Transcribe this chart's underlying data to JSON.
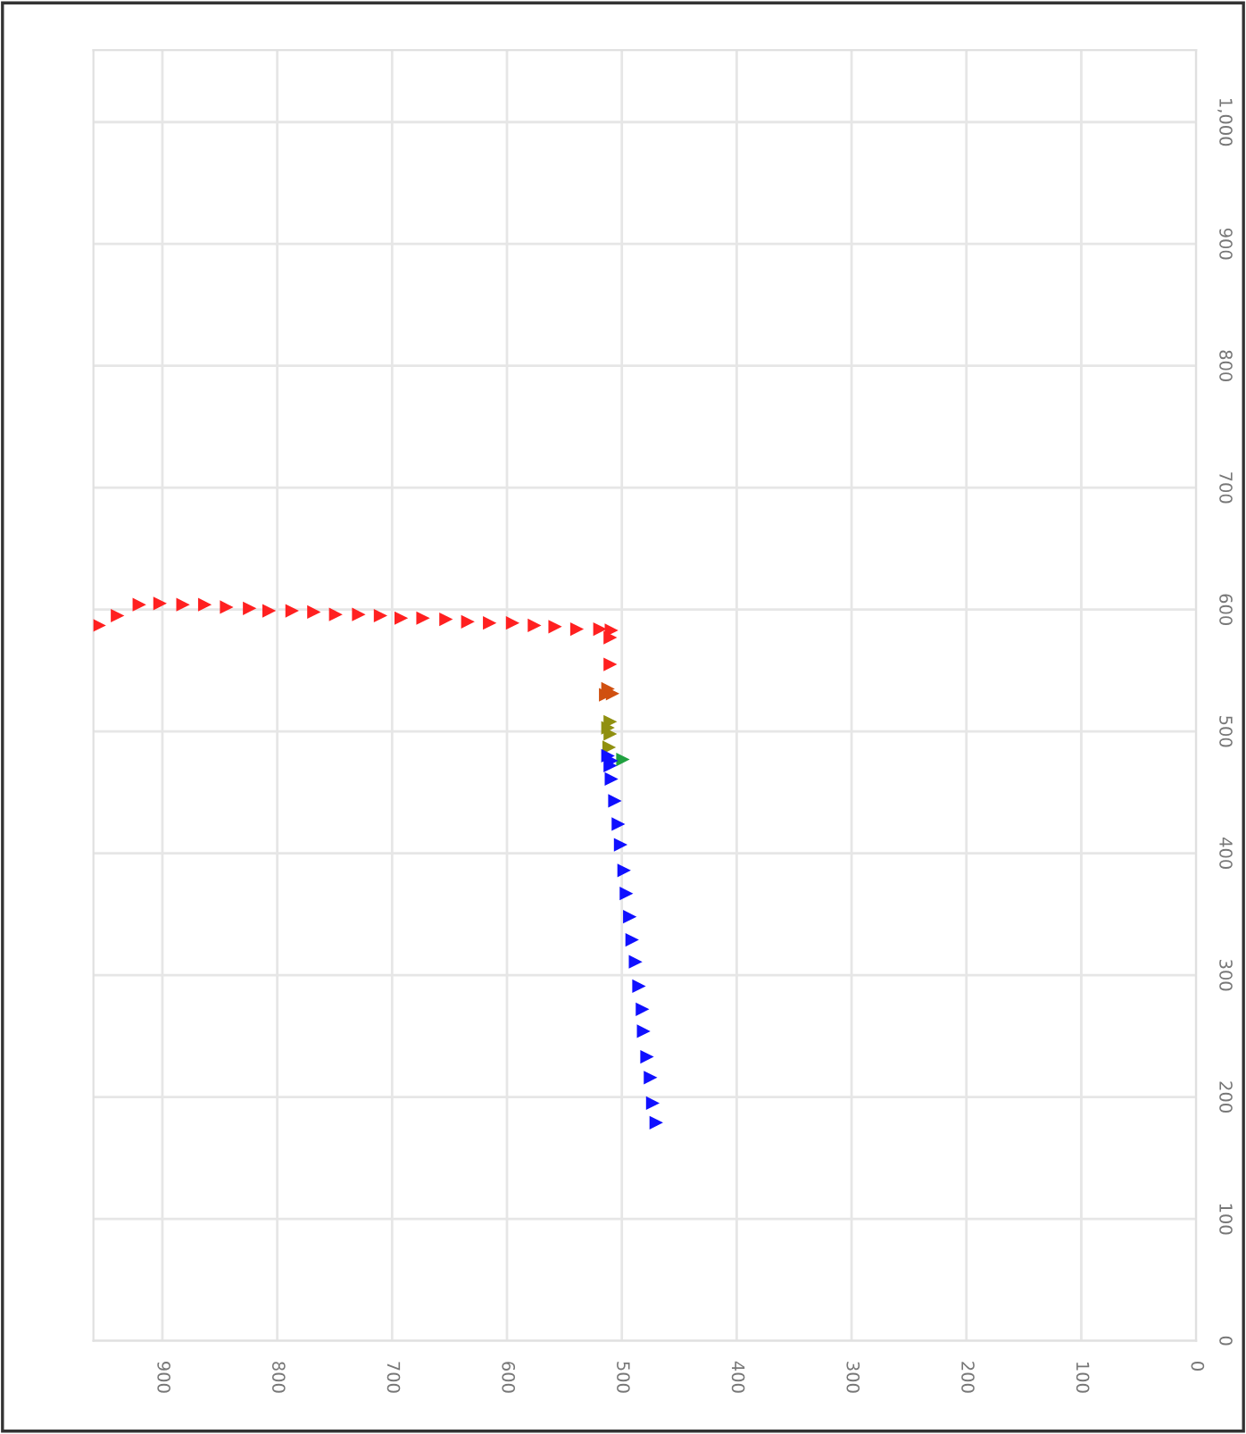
{
  "chart_data": {
    "type": "scatter",
    "marker": "triangle",
    "grid": true,
    "legend": false,
    "xlim": [
      960,
      0
    ],
    "ylim": [
      0,
      1059
    ],
    "xticks": [
      900,
      800,
      700,
      600,
      500,
      400,
      300,
      200,
      100,
      0
    ],
    "yticks": [
      0,
      100,
      200,
      300,
      400,
      500,
      600,
      700,
      800,
      900,
      {
        "value": 1000,
        "label": "1,000"
      }
    ],
    "series": [
      {
        "color": "#ff2020",
        "x": [
          955,
          939,
          920,
          902,
          882,
          863,
          844,
          824,
          807,
          787,
          768,
          749,
          729,
          710,
          692,
          673,
          653,
          634,
          615,
          595,
          576,
          558,
          539,
          519,
          509,
          510,
          510
        ],
        "values": [
          587,
          595,
          604,
          605,
          604,
          604,
          602,
          601,
          599,
          599,
          598,
          596,
          596,
          595,
          593,
          593,
          592,
          590,
          589,
          589,
          587,
          586,
          584,
          584,
          583,
          577,
          555
        ]
      },
      {
        "color": "#d05010",
        "x": [
          512,
          508,
          514
        ],
        "values": [
          535,
          531,
          530
        ]
      },
      {
        "color": "#909010",
        "x": [
          510,
          512,
          510,
          511
        ],
        "values": [
          508,
          503,
          498,
          487
        ]
      },
      {
        "color": "#20a040",
        "x": [
          499
        ],
        "values": [
          477
        ]
      },
      {
        "color": "#1010ff",
        "x": [
          512,
          509,
          510,
          509,
          506,
          503,
          501,
          498,
          496,
          493,
          491,
          488,
          485,
          482,
          481,
          478,
          475,
          473,
          470
        ],
        "values": [
          480,
          476,
          472,
          461,
          443,
          424,
          407,
          386,
          367,
          348,
          329,
          311,
          291,
          272,
          254,
          233,
          216,
          195,
          179
        ]
      }
    ]
  }
}
